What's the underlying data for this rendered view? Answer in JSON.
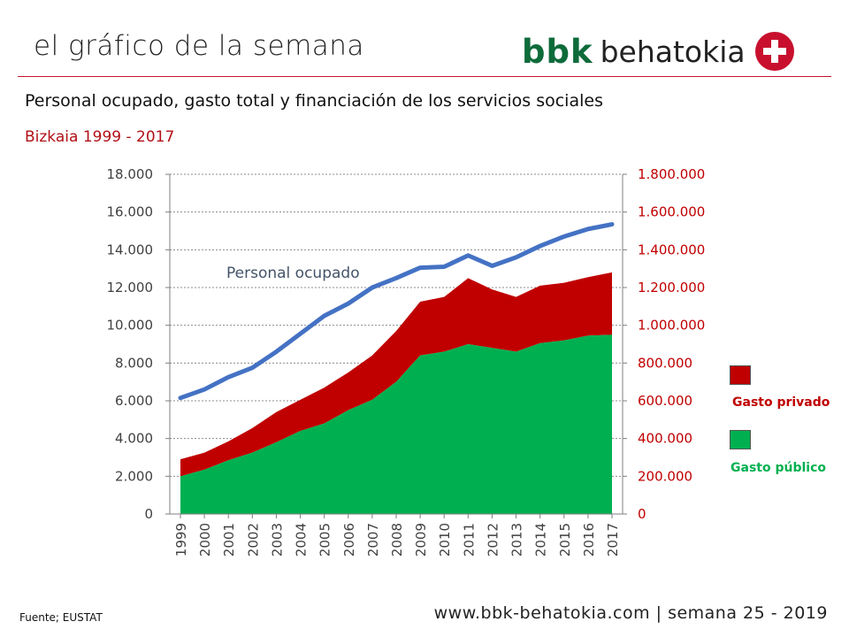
{
  "header": {
    "title": "el gráfico de la semana",
    "logo_bbk": "bbk",
    "logo_behatokia": "behatokia"
  },
  "footer": {
    "source": "Fuente; EUSTAT",
    "website": "www.bbk-behatokia.com | semana 25 - 2019"
  },
  "colors": {
    "accent_red": "#c8102e",
    "gasto_privado": "#c00000",
    "gasto_publico": "#00b050",
    "personal_line": "#4472c4",
    "brand_green": "#0e6b3a"
  },
  "chart_data": {
    "type": "area",
    "title": "Personal ocupado, gasto total y financiación de los servicios sociales",
    "subtitle": "Bizkaia 1999 - 2017",
    "x": [
      "1999",
      "2000",
      "2001",
      "2002",
      "2003",
      "2004",
      "2005",
      "2006",
      "2007",
      "2008",
      "2009",
      "2010",
      "2011",
      "2012",
      "2013",
      "2014",
      "2015",
      "2016",
      "2017"
    ],
    "left_axis": {
      "ylim": [
        0,
        18000
      ],
      "ticks": [
        "0",
        "2.000",
        "4.000",
        "6.000",
        "8.000",
        "10.000",
        "12.000",
        "14.000",
        "16.000",
        "18.000"
      ]
    },
    "right_axis": {
      "ylim": [
        0,
        1800000
      ],
      "ticks": [
        "0",
        "200.000",
        "400.000",
        "600.000",
        "800.000",
        "1.000.000",
        "1.200.000",
        "1.400.000",
        "1.600.000",
        "1.800.000"
      ]
    },
    "grid": true,
    "series": [
      {
        "name": "Gasto público",
        "axis": "right",
        "kind": "area",
        "values": [
          200000,
          235000,
          285000,
          325000,
          380000,
          440000,
          480000,
          550000,
          605000,
          700000,
          840000,
          860000,
          900000,
          880000,
          860000,
          905000,
          920000,
          945000,
          950000
        ]
      },
      {
        "name": "Gasto privado",
        "axis": "right",
        "kind": "area_stacked",
        "values": [
          90000,
          90000,
          100000,
          130000,
          160000,
          165000,
          190000,
          200000,
          235000,
          270000,
          285000,
          290000,
          350000,
          310000,
          290000,
          305000,
          305000,
          310000,
          330000
        ]
      },
      {
        "name": "Personal ocupado",
        "axis": "left",
        "kind": "line",
        "values": [
          6150,
          6600,
          7250,
          7750,
          8600,
          9550,
          10500,
          11150,
          12000,
          12500,
          13050,
          13100,
          13700,
          13150,
          13600,
          14200,
          14700,
          15100,
          15350
        ]
      }
    ],
    "annotations": [
      {
        "text": "Personal ocupado",
        "series": "Personal ocupado"
      }
    ],
    "legend": {
      "position": "right",
      "items": [
        {
          "label": "Gasto privado",
          "color": "#c00000"
        },
        {
          "label": "Gasto público",
          "color": "#00b050"
        }
      ]
    }
  }
}
